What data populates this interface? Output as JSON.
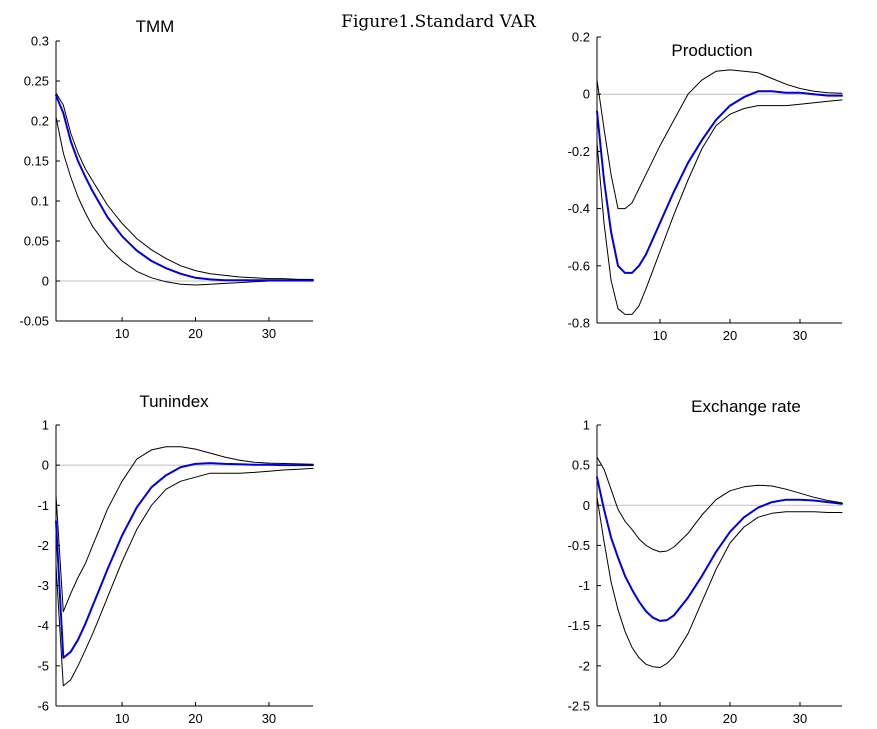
{
  "figure_title": "Figure1.Standard VAR",
  "chart_data": [
    {
      "type": "line",
      "title": "TMM",
      "xlabel": "",
      "ylabel": "",
      "xlim": [
        1,
        36
      ],
      "ylim": [
        -0.05,
        0.3
      ],
      "xticks": [
        10,
        20,
        30
      ],
      "xtick_labels": [
        "10",
        "20",
        "30"
      ],
      "yticks": [
        -0.05,
        0,
        0.05,
        0.1,
        0.15,
        0.2,
        0.25,
        0.3
      ],
      "ytick_labels": [
        "-0.05",
        "0",
        "0.05",
        "0.1",
        "0.15",
        "0.2",
        "0.25",
        "0.3"
      ],
      "zero_line": true,
      "series": [
        {
          "role": "lower",
          "color": "#000000",
          "x": [
            1,
            2,
            3,
            4,
            5,
            6,
            8,
            10,
            12,
            14,
            16,
            18,
            20,
            22,
            24,
            26,
            28,
            30,
            32,
            34,
            36
          ],
          "values": [
            0.205,
            0.16,
            0.13,
            0.105,
            0.085,
            0.068,
            0.043,
            0.025,
            0.012,
            0.004,
            -0.001,
            -0.004,
            -0.005,
            -0.004,
            -0.003,
            -0.002,
            -0.001,
            0,
            0,
            0,
            0
          ]
        },
        {
          "role": "estimate",
          "color": "#0000dd",
          "x": [
            1,
            2,
            3,
            4,
            5,
            6,
            8,
            10,
            12,
            14,
            16,
            18,
            20,
            22,
            24,
            26,
            28,
            30,
            32,
            34,
            36
          ],
          "values": [
            0.232,
            0.21,
            0.175,
            0.15,
            0.13,
            0.112,
            0.08,
            0.056,
            0.038,
            0.025,
            0.016,
            0.009,
            0.004,
            0.002,
            0.001,
            0.001,
            0.001,
            0.001,
            0.001,
            0.001,
            0.001
          ]
        },
        {
          "role": "upper",
          "color": "#000000",
          "x": [
            1,
            2,
            3,
            4,
            5,
            6,
            8,
            10,
            12,
            14,
            16,
            18,
            20,
            22,
            24,
            26,
            28,
            30,
            32,
            34,
            36
          ],
          "values": [
            0.235,
            0.22,
            0.185,
            0.16,
            0.14,
            0.125,
            0.095,
            0.072,
            0.053,
            0.039,
            0.028,
            0.019,
            0.013,
            0.009,
            0.007,
            0.005,
            0.004,
            0.003,
            0.003,
            0.002,
            0.002
          ]
        }
      ]
    },
    {
      "type": "line",
      "title": "Production",
      "xlabel": "",
      "ylabel": "",
      "xlim": [
        1,
        36
      ],
      "ylim": [
        -0.8,
        0.2
      ],
      "xticks": [
        10,
        20,
        30
      ],
      "xtick_labels": [
        "10",
        "20",
        "30"
      ],
      "yticks": [
        -0.8,
        -0.6,
        -0.4,
        -0.2,
        0,
        0.2
      ],
      "ytick_labels": [
        "-0.8",
        "-0.6",
        "-0.4",
        "-0.2",
        "0",
        "0.2"
      ],
      "zero_line": true,
      "series": [
        {
          "role": "lower",
          "color": "#000000",
          "x": [
            1,
            2,
            3,
            4,
            5,
            6,
            7,
            8,
            10,
            12,
            14,
            16,
            18,
            20,
            22,
            24,
            26,
            28,
            30,
            32,
            34,
            36
          ],
          "values": [
            -0.17,
            -0.45,
            -0.65,
            -0.75,
            -0.77,
            -0.77,
            -0.74,
            -0.68,
            -0.55,
            -0.42,
            -0.3,
            -0.19,
            -0.11,
            -0.07,
            -0.05,
            -0.04,
            -0.04,
            -0.04,
            -0.035,
            -0.03,
            -0.025,
            -0.02
          ]
        },
        {
          "role": "estimate",
          "color": "#0000dd",
          "x": [
            1,
            2,
            3,
            4,
            5,
            6,
            7,
            8,
            10,
            12,
            14,
            16,
            18,
            20,
            22,
            24,
            26,
            28,
            30,
            32,
            34,
            36
          ],
          "values": [
            -0.06,
            -0.3,
            -0.48,
            -0.6,
            -0.625,
            -0.625,
            -0.6,
            -0.56,
            -0.45,
            -0.34,
            -0.24,
            -0.16,
            -0.09,
            -0.04,
            -0.01,
            0.01,
            0.01,
            0.005,
            0.005,
            0,
            -0.005,
            -0.005
          ]
        },
        {
          "role": "upper",
          "color": "#000000",
          "x": [
            1,
            2,
            3,
            4,
            5,
            6,
            7,
            8,
            10,
            12,
            14,
            16,
            18,
            20,
            22,
            24,
            26,
            28,
            30,
            32,
            34,
            36
          ],
          "values": [
            0.05,
            -0.12,
            -0.28,
            -0.4,
            -0.4,
            -0.38,
            -0.33,
            -0.28,
            -0.18,
            -0.09,
            0,
            0.05,
            0.08,
            0.085,
            0.08,
            0.075,
            0.055,
            0.035,
            0.02,
            0.01,
            0.005,
            0.003
          ]
        }
      ]
    },
    {
      "type": "line",
      "title": "Tunindex",
      "xlabel": "",
      "ylabel": "",
      "xlim": [
        1,
        36
      ],
      "ylim": [
        -6,
        1
      ],
      "xticks": [
        10,
        20,
        30
      ],
      "xtick_labels": [
        "10",
        "20",
        "30"
      ],
      "yticks": [
        -6,
        -5,
        -4,
        -3,
        -2,
        -1,
        0,
        1
      ],
      "ytick_labels": [
        "-6",
        "-5",
        "-4",
        "-3",
        "-2",
        "-1",
        "0",
        "1"
      ],
      "zero_line": true,
      "series": [
        {
          "role": "lower",
          "color": "#000000",
          "x": [
            1,
            2,
            3,
            4,
            5,
            6,
            7,
            8,
            10,
            12,
            14,
            16,
            18,
            20,
            22,
            24,
            26,
            28,
            30,
            32,
            34,
            36
          ],
          "values": [
            -2.5,
            -5.5,
            -5.35,
            -5.0,
            -4.6,
            -4.2,
            -3.75,
            -3.3,
            -2.4,
            -1.6,
            -1.0,
            -0.6,
            -0.4,
            -0.3,
            -0.2,
            -0.2,
            -0.2,
            -0.18,
            -0.15,
            -0.12,
            -0.1,
            -0.08
          ]
        },
        {
          "role": "estimate",
          "color": "#0000dd",
          "x": [
            1,
            2,
            3,
            4,
            5,
            6,
            7,
            8,
            10,
            12,
            14,
            16,
            18,
            20,
            22,
            24,
            26,
            28,
            30,
            32,
            34,
            36
          ],
          "values": [
            -1.4,
            -4.8,
            -4.65,
            -4.35,
            -3.95,
            -3.5,
            -3.05,
            -2.6,
            -1.75,
            -1.05,
            -0.55,
            -0.25,
            -0.05,
            0.03,
            0.05,
            0.03,
            0.02,
            0.01,
            0.01,
            0,
            0,
            0
          ]
        },
        {
          "role": "upper",
          "color": "#000000",
          "x": [
            1,
            2,
            3,
            4,
            5,
            6,
            7,
            8,
            10,
            12,
            14,
            16,
            18,
            20,
            22,
            24,
            26,
            28,
            30,
            32,
            34,
            36
          ],
          "values": [
            -0.75,
            -3.65,
            -3.2,
            -2.8,
            -2.45,
            -2.0,
            -1.55,
            -1.1,
            -0.4,
            0.15,
            0.38,
            0.46,
            0.46,
            0.4,
            0.3,
            0.2,
            0.12,
            0.07,
            0.05,
            0.04,
            0.03,
            0.02
          ]
        }
      ]
    },
    {
      "type": "line",
      "title": "Exchange rate",
      "xlabel": "",
      "ylabel": "",
      "xlim": [
        1,
        36
      ],
      "ylim": [
        -2.5,
        1
      ],
      "xticks": [
        10,
        20,
        30
      ],
      "xtick_labels": [
        "10",
        "20",
        "30"
      ],
      "yticks": [
        -2.5,
        -2,
        -1.5,
        -1,
        -0.5,
        0,
        0.5,
        1
      ],
      "ytick_labels": [
        "-2.5",
        "-2",
        "-1.5",
        "-1",
        "-0.5",
        "0",
        "0.5",
        "1"
      ],
      "zero_line": true,
      "series": [
        {
          "role": "lower",
          "color": "#000000",
          "x": [
            1,
            2,
            3,
            4,
            5,
            6,
            7,
            8,
            9,
            10,
            11,
            12,
            14,
            16,
            18,
            20,
            22,
            24,
            26,
            28,
            30,
            32,
            34,
            36
          ],
          "values": [
            0.1,
            -0.45,
            -0.95,
            -1.3,
            -1.57,
            -1.77,
            -1.9,
            -1.98,
            -2.01,
            -2.02,
            -1.97,
            -1.88,
            -1.6,
            -1.2,
            -0.8,
            -0.47,
            -0.27,
            -0.15,
            -0.1,
            -0.08,
            -0.08,
            -0.08,
            -0.09,
            -0.09
          ]
        },
        {
          "role": "estimate",
          "color": "#0000dd",
          "x": [
            1,
            2,
            3,
            4,
            5,
            6,
            7,
            8,
            9,
            10,
            11,
            12,
            14,
            16,
            18,
            20,
            22,
            24,
            26,
            28,
            30,
            32,
            34,
            36
          ],
          "values": [
            0.35,
            -0.05,
            -0.4,
            -0.65,
            -0.88,
            -1.05,
            -1.2,
            -1.32,
            -1.4,
            -1.44,
            -1.43,
            -1.37,
            -1.15,
            -0.88,
            -0.58,
            -0.33,
            -0.15,
            -0.03,
            0.04,
            0.07,
            0.07,
            0.06,
            0.04,
            0.02
          ]
        },
        {
          "role": "upper",
          "color": "#000000",
          "x": [
            1,
            2,
            3,
            4,
            5,
            6,
            7,
            8,
            9,
            10,
            11,
            12,
            14,
            16,
            18,
            20,
            22,
            24,
            26,
            28,
            30,
            32,
            34,
            36
          ],
          "values": [
            0.6,
            0.45,
            0.2,
            -0.05,
            -0.2,
            -0.3,
            -0.42,
            -0.5,
            -0.55,
            -0.58,
            -0.57,
            -0.52,
            -0.35,
            -0.12,
            0.07,
            0.18,
            0.23,
            0.25,
            0.24,
            0.2,
            0.15,
            0.1,
            0.06,
            0.03
          ]
        }
      ]
    }
  ]
}
